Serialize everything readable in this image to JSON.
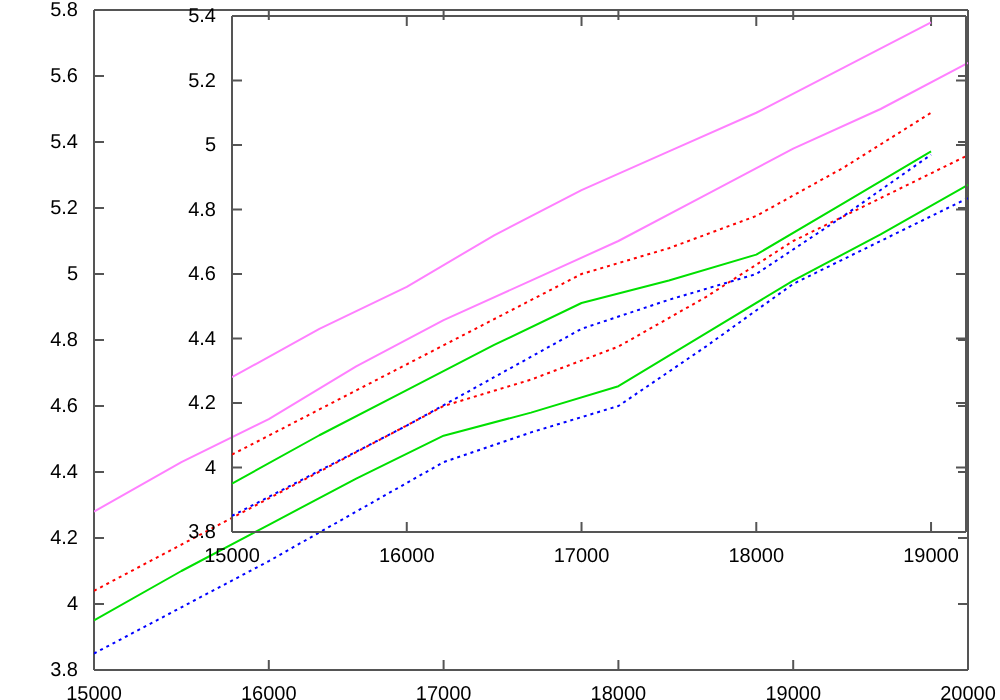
{
  "chart_data": [
    {
      "type": "line",
      "x": [
        15000,
        15500,
        16000,
        16500,
        17000,
        17500,
        18000,
        18500,
        19000,
        19500,
        20000
      ],
      "xlim": [
        15000,
        20000
      ],
      "ylim": [
        3.8,
        5.8
      ],
      "xticks": [
        15000,
        16000,
        17000,
        18000,
        19000,
        20000
      ],
      "yticks": [
        3.8,
        4,
        4.2,
        4.4,
        4.6,
        4.8,
        5,
        5.2,
        5.4,
        5.6,
        5.8
      ],
      "grid": false,
      "marker": "none",
      "series": [
        {
          "color": "#ff80ff",
          "line_style": "solid",
          "values": [
            4.28,
            4.43,
            4.56,
            4.72,
            4.86,
            4.98,
            5.1,
            5.24,
            5.38,
            5.5,
            5.64
          ]
        },
        {
          "color": "#ff0000",
          "line_style": "dotted",
          "values": [
            4.04,
            4.18,
            4.32,
            4.46,
            4.6,
            4.68,
            4.78,
            4.93,
            5.1,
            5.23,
            5.36
          ]
        },
        {
          "color": "#00e000",
          "line_style": "solid",
          "values": [
            3.95,
            4.1,
            4.24,
            4.38,
            4.51,
            4.58,
            4.66,
            4.82,
            4.98,
            5.12,
            5.27
          ]
        },
        {
          "color": "#0000ff",
          "line_style": "dotted",
          "values": [
            3.85,
            3.99,
            4.13,
            4.28,
            4.43,
            4.52,
            4.6,
            4.78,
            4.97,
            5.1,
            5.23
          ]
        }
      ]
    },
    {
      "type": "line",
      "x": [
        15000,
        15500,
        16000,
        16500,
        17000,
        17500,
        18000,
        18500,
        19000
      ],
      "xlim": [
        15000,
        19200
      ],
      "ylim": [
        3.8,
        5.4
      ],
      "xticks": [
        15000,
        16000,
        17000,
        18000,
        19000
      ],
      "yticks": [
        3.8,
        4,
        4.2,
        4.4,
        4.6,
        4.8,
        5,
        5.2,
        5.4
      ],
      "grid": false,
      "marker": "none",
      "series": [
        {
          "color": "#ff80ff",
          "line_style": "solid",
          "values": [
            4.28,
            4.43,
            4.56,
            4.72,
            4.86,
            4.98,
            5.1,
            5.24,
            5.38
          ]
        },
        {
          "color": "#ff0000",
          "line_style": "dotted",
          "values": [
            4.04,
            4.18,
            4.32,
            4.46,
            4.6,
            4.68,
            4.78,
            4.93,
            5.1
          ]
        },
        {
          "color": "#00e000",
          "line_style": "solid",
          "values": [
            3.95,
            4.1,
            4.24,
            4.38,
            4.51,
            4.58,
            4.66,
            4.82,
            4.98
          ]
        },
        {
          "color": "#0000ff",
          "line_style": "dotted",
          "values": [
            3.85,
            3.99,
            4.13,
            4.28,
            4.43,
            4.52,
            4.6,
            4.78,
            4.97
          ]
        }
      ]
    }
  ]
}
